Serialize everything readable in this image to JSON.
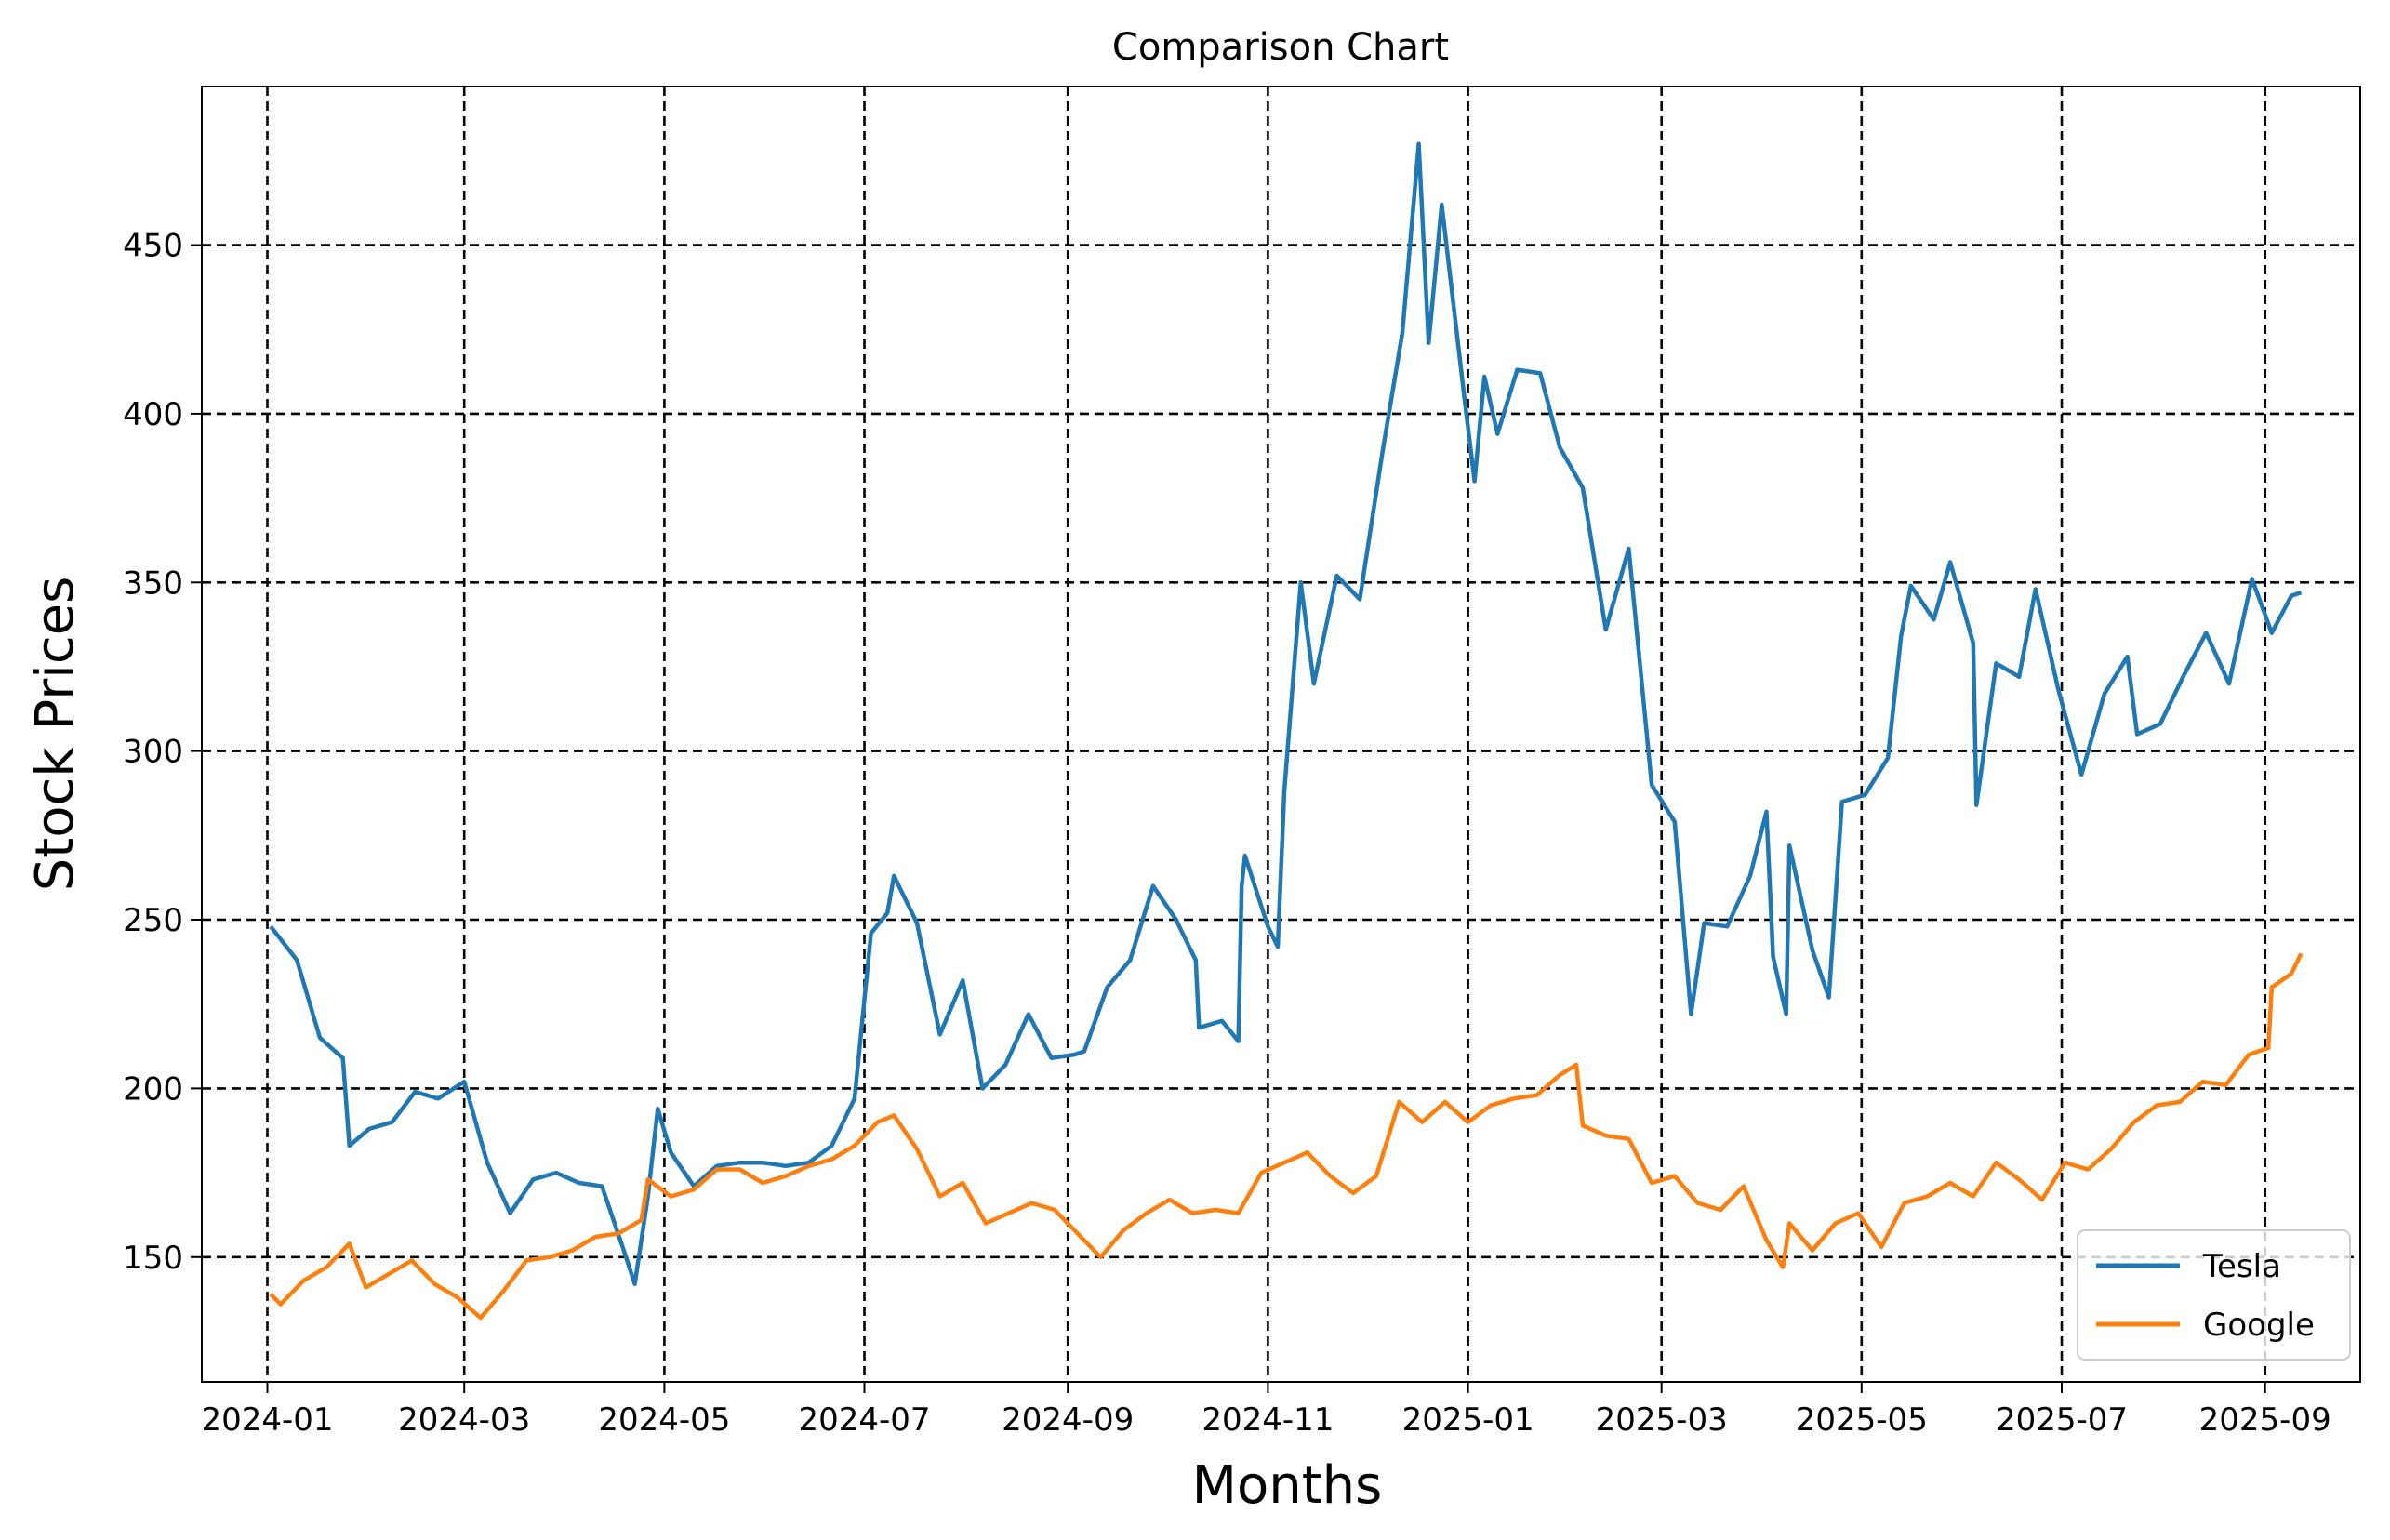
{
  "chart_data": {
    "type": "line",
    "title": "Comparison Chart",
    "xlabel": "Months",
    "ylabel": "Stock Prices",
    "x_ticks": [
      "2024-01",
      "2024-03",
      "2024-05",
      "2024-07",
      "2024-09",
      "2024-11",
      "2025-01",
      "2025-03",
      "2025-05",
      "2025-07",
      "2025-09"
    ],
    "y_ticks": [
      150,
      200,
      250,
      300,
      350,
      400,
      450
    ],
    "xlim": [
      "2023-12-12",
      "2025-09-30"
    ],
    "ylim": [
      113,
      497
    ],
    "grid": true,
    "legend_position": "lower-right",
    "series": [
      {
        "name": "Tesla",
        "color": "#1f77b4",
        "points": [
          [
            "2024-01-02",
            248
          ],
          [
            "2024-01-10",
            238
          ],
          [
            "2024-01-17",
            215
          ],
          [
            "2024-01-24",
            209
          ],
          [
            "2024-01-26",
            183
          ],
          [
            "2024-02-01",
            188
          ],
          [
            "2024-02-08",
            190
          ],
          [
            "2024-02-15",
            199
          ],
          [
            "2024-02-22",
            197
          ],
          [
            "2024-03-01",
            202
          ],
          [
            "2024-03-08",
            178
          ],
          [
            "2024-03-15",
            163
          ],
          [
            "2024-03-22",
            173
          ],
          [
            "2024-03-29",
            175
          ],
          [
            "2024-04-05",
            172
          ],
          [
            "2024-04-12",
            171
          ],
          [
            "2024-04-19",
            151
          ],
          [
            "2024-04-22",
            142
          ],
          [
            "2024-04-26",
            168
          ],
          [
            "2024-04-29",
            194
          ],
          [
            "2024-05-03",
            181
          ],
          [
            "2024-05-10",
            171
          ],
          [
            "2024-05-17",
            177
          ],
          [
            "2024-05-24",
            178
          ],
          [
            "2024-05-31",
            178
          ],
          [
            "2024-06-07",
            177
          ],
          [
            "2024-06-14",
            178
          ],
          [
            "2024-06-21",
            183
          ],
          [
            "2024-06-28",
            197
          ],
          [
            "2024-07-03",
            246
          ],
          [
            "2024-07-08",
            252
          ],
          [
            "2024-07-10",
            263
          ],
          [
            "2024-07-17",
            249
          ],
          [
            "2024-07-24",
            216
          ],
          [
            "2024-07-31",
            232
          ],
          [
            "2024-08-06",
            200
          ],
          [
            "2024-08-13",
            207
          ],
          [
            "2024-08-20",
            222
          ],
          [
            "2024-08-27",
            209
          ],
          [
            "2024-09-03",
            210
          ],
          [
            "2024-09-06",
            211
          ],
          [
            "2024-09-13",
            230
          ],
          [
            "2024-09-20",
            238
          ],
          [
            "2024-09-27",
            260
          ],
          [
            "2024-10-04",
            250
          ],
          [
            "2024-10-10",
            238
          ],
          [
            "2024-10-11",
            218
          ],
          [
            "2024-10-18",
            220
          ],
          [
            "2024-10-23",
            214
          ],
          [
            "2024-10-24",
            260
          ],
          [
            "2024-10-25",
            269
          ],
          [
            "2024-11-01",
            248
          ],
          [
            "2024-11-04",
            242
          ],
          [
            "2024-11-06",
            288
          ],
          [
            "2024-11-11",
            350
          ],
          [
            "2024-11-15",
            320
          ],
          [
            "2024-11-22",
            352
          ],
          [
            "2024-11-29",
            345
          ],
          [
            "2024-12-06",
            389
          ],
          [
            "2024-12-12",
            424
          ],
          [
            "2024-12-17",
            480
          ],
          [
            "2024-12-20",
            421
          ],
          [
            "2024-12-24",
            462
          ],
          [
            "2024-12-31",
            404
          ],
          [
            "2025-01-03",
            380
          ],
          [
            "2025-01-06",
            411
          ],
          [
            "2025-01-10",
            394
          ],
          [
            "2025-01-16",
            413
          ],
          [
            "2025-01-23",
            412
          ],
          [
            "2025-01-29",
            390
          ],
          [
            "2025-02-05",
            378
          ],
          [
            "2025-02-12",
            336
          ],
          [
            "2025-02-19",
            360
          ],
          [
            "2025-02-26",
            290
          ],
          [
            "2025-03-05",
            279
          ],
          [
            "2025-03-10",
            222
          ],
          [
            "2025-03-14",
            249
          ],
          [
            "2025-03-21",
            248
          ],
          [
            "2025-03-28",
            263
          ],
          [
            "2025-04-02",
            282
          ],
          [
            "2025-04-04",
            239
          ],
          [
            "2025-04-08",
            222
          ],
          [
            "2025-04-09",
            272
          ],
          [
            "2025-04-16",
            241
          ],
          [
            "2025-04-21",
            227
          ],
          [
            "2025-04-25",
            285
          ],
          [
            "2025-05-02",
            287
          ],
          [
            "2025-05-09",
            298
          ],
          [
            "2025-05-13",
            334
          ],
          [
            "2025-05-16",
            349
          ],
          [
            "2025-05-23",
            339
          ],
          [
            "2025-05-28",
            356
          ],
          [
            "2025-06-04",
            332
          ],
          [
            "2025-06-05",
            284
          ],
          [
            "2025-06-11",
            326
          ],
          [
            "2025-06-18",
            322
          ],
          [
            "2025-06-23",
            348
          ],
          [
            "2025-06-30",
            318
          ],
          [
            "2025-07-07",
            293
          ],
          [
            "2025-07-14",
            317
          ],
          [
            "2025-07-21",
            328
          ],
          [
            "2025-07-24",
            305
          ],
          [
            "2025-07-31",
            308
          ],
          [
            "2025-08-07",
            322
          ],
          [
            "2025-08-14",
            335
          ],
          [
            "2025-08-21",
            320
          ],
          [
            "2025-08-28",
            351
          ],
          [
            "2025-09-03",
            335
          ],
          [
            "2025-09-09",
            346
          ],
          [
            "2025-09-12",
            347
          ]
        ]
      },
      {
        "name": "Google",
        "color": "#ff7f0e",
        "points": [
          [
            "2024-01-02",
            139
          ],
          [
            "2024-01-05",
            136
          ],
          [
            "2024-01-12",
            143
          ],
          [
            "2024-01-19",
            147
          ],
          [
            "2024-01-26",
            154
          ],
          [
            "2024-01-31",
            141
          ],
          [
            "2024-02-07",
            145
          ],
          [
            "2024-02-14",
            149
          ],
          [
            "2024-02-21",
            142
          ],
          [
            "2024-02-28",
            138
          ],
          [
            "2024-03-06",
            132
          ],
          [
            "2024-03-13",
            140
          ],
          [
            "2024-03-20",
            149
          ],
          [
            "2024-03-27",
            150
          ],
          [
            "2024-04-03",
            152
          ],
          [
            "2024-04-10",
            156
          ],
          [
            "2024-04-17",
            157
          ],
          [
            "2024-04-24",
            161
          ],
          [
            "2024-04-26",
            173
          ],
          [
            "2024-05-03",
            168
          ],
          [
            "2024-05-10",
            170
          ],
          [
            "2024-05-17",
            176
          ],
          [
            "2024-05-24",
            176
          ],
          [
            "2024-05-31",
            172
          ],
          [
            "2024-06-07",
            174
          ],
          [
            "2024-06-14",
            177
          ],
          [
            "2024-06-21",
            179
          ],
          [
            "2024-06-28",
            183
          ],
          [
            "2024-07-05",
            190
          ],
          [
            "2024-07-10",
            192
          ],
          [
            "2024-07-17",
            182
          ],
          [
            "2024-07-24",
            168
          ],
          [
            "2024-07-31",
            172
          ],
          [
            "2024-08-07",
            160
          ],
          [
            "2024-08-14",
            163
          ],
          [
            "2024-08-21",
            166
          ],
          [
            "2024-08-28",
            164
          ],
          [
            "2024-09-04",
            157
          ],
          [
            "2024-09-11",
            150
          ],
          [
            "2024-09-18",
            158
          ],
          [
            "2024-09-25",
            163
          ],
          [
            "2024-10-02",
            167
          ],
          [
            "2024-10-09",
            163
          ],
          [
            "2024-10-16",
            164
          ],
          [
            "2024-10-23",
            163
          ],
          [
            "2024-10-30",
            175
          ],
          [
            "2024-11-06",
            178
          ],
          [
            "2024-11-13",
            181
          ],
          [
            "2024-11-20",
            174
          ],
          [
            "2024-11-27",
            169
          ],
          [
            "2024-12-04",
            174
          ],
          [
            "2024-12-11",
            196
          ],
          [
            "2024-12-18",
            190
          ],
          [
            "2024-12-25",
            196
          ],
          [
            "2025-01-01",
            190
          ],
          [
            "2025-01-08",
            195
          ],
          [
            "2025-01-15",
            197
          ],
          [
            "2025-01-22",
            198
          ],
          [
            "2025-01-29",
            204
          ],
          [
            "2025-02-03",
            207
          ],
          [
            "2025-02-05",
            189
          ],
          [
            "2025-02-12",
            186
          ],
          [
            "2025-02-19",
            185
          ],
          [
            "2025-02-26",
            172
          ],
          [
            "2025-03-05",
            174
          ],
          [
            "2025-03-12",
            166
          ],
          [
            "2025-03-19",
            164
          ],
          [
            "2025-03-26",
            171
          ],
          [
            "2025-04-02",
            155
          ],
          [
            "2025-04-07",
            147
          ],
          [
            "2025-04-09",
            160
          ],
          [
            "2025-04-16",
            152
          ],
          [
            "2025-04-23",
            160
          ],
          [
            "2025-04-30",
            163
          ],
          [
            "2025-05-07",
            153
          ],
          [
            "2025-05-14",
            166
          ],
          [
            "2025-05-21",
            168
          ],
          [
            "2025-05-28",
            172
          ],
          [
            "2025-06-04",
            168
          ],
          [
            "2025-06-11",
            178
          ],
          [
            "2025-06-18",
            173
          ],
          [
            "2025-06-25",
            167
          ],
          [
            "2025-07-02",
            178
          ],
          [
            "2025-07-09",
            176
          ],
          [
            "2025-07-16",
            182
          ],
          [
            "2025-07-23",
            190
          ],
          [
            "2025-07-30",
            195
          ],
          [
            "2025-08-06",
            196
          ],
          [
            "2025-08-13",
            202
          ],
          [
            "2025-08-20",
            201
          ],
          [
            "2025-08-27",
            210
          ],
          [
            "2025-09-02",
            212
          ],
          [
            "2025-09-03",
            230
          ],
          [
            "2025-09-09",
            234
          ],
          [
            "2025-09-12",
            240
          ]
        ]
      }
    ]
  }
}
